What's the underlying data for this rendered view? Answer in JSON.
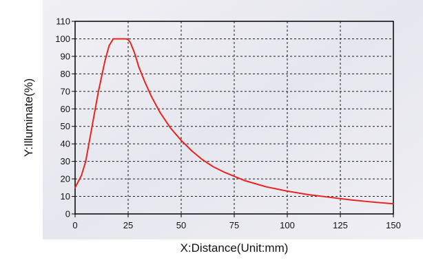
{
  "chart_data": {
    "type": "line",
    "title": "",
    "xlabel": "X:Distance(Unit:mm)",
    "ylabel": "Y:Illuminate(%)",
    "xlim": [
      0,
      150
    ],
    "ylim": [
      0,
      110
    ],
    "x_ticks": [
      0,
      25,
      50,
      75,
      100,
      125,
      150
    ],
    "y_ticks": [
      0,
      10,
      20,
      30,
      40,
      50,
      60,
      70,
      80,
      90,
      100,
      110
    ],
    "grid": true,
    "legend": "none",
    "series": [
      {
        "color": "#e8231f",
        "x": [
          0,
          3,
          5,
          8,
          11,
          14,
          16,
          18,
          20,
          22,
          24,
          25,
          26,
          28,
          30,
          33,
          36,
          40,
          45,
          50,
          55,
          60,
          65,
          70,
          75,
          80,
          90,
          100,
          110,
          120,
          130,
          140,
          150
        ],
        "y": [
          15,
          22,
          30,
          50,
          70,
          87,
          96,
          100,
          100,
          100,
          100,
          99.5,
          98,
          92,
          84,
          75,
          67,
          58,
          49,
          42,
          36,
          31,
          27,
          24,
          21.5,
          19,
          15.5,
          13,
          11,
          9.5,
          8,
          6.8,
          5.8
        ]
      }
    ]
  }
}
